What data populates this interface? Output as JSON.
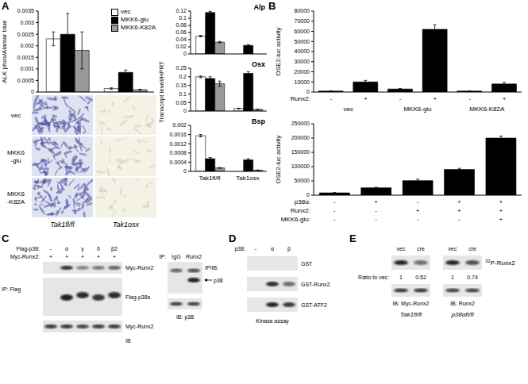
{
  "panel_labels": [
    "A",
    "B",
    "C",
    "D",
    "E"
  ],
  "chart_data": [
    {
      "type": "bar",
      "ylabel": "ALK phos/Alamar blue",
      "categories": [
        null,
        null
      ],
      "series": [
        {
          "name": "vec",
          "color": "#ffffff",
          "values": [
            0.0023,
            0.00015
          ],
          "errors": [
            0.0003,
            3e-05
          ]
        },
        {
          "name": "MKK6-glu",
          "color": "#000000",
          "values": [
            0.0025,
            0.00085
          ],
          "errors": [
            0.0009,
            0.0001
          ]
        },
        {
          "name": "MKK6-K82A",
          "color": "#999999",
          "values": [
            0.0018,
            0.0001
          ],
          "errors": [
            0.0008,
            2e-05
          ]
        }
      ],
      "ylim": [
        0,
        0.0035
      ],
      "yticks": [
        0,
        0.0005,
        0.001,
        0.0015,
        0.002,
        0.0025,
        0.003,
        0.0035
      ],
      "grid": false,
      "legend": "upper right"
    },
    {
      "type": "bar",
      "title": "Alp",
      "categories": [
        null,
        null
      ],
      "series": [
        {
          "name": "vec",
          "color": "#ffffff",
          "values": [
            0.05,
            0
          ],
          "errors": [
            0.002,
            0
          ]
        },
        {
          "name": "MKK6-glu",
          "color": "#000000",
          "values": [
            0.116,
            0.024
          ],
          "errors": [
            0.003,
            0.002
          ]
        },
        {
          "name": "MKK6-K82A",
          "color": "#999999",
          "values": [
            0.033,
            0
          ],
          "errors": [
            0.002,
            0
          ]
        }
      ],
      "ylim": [
        0,
        0.12
      ],
      "yticks": [
        0,
        0.02,
        0.04,
        0.06,
        0.08,
        0.1,
        0.12
      ],
      "grid": false
    },
    {
      "type": "bar",
      "title": "Osx",
      "ylabel": "Transcript level/HPRT",
      "categories": [
        null,
        null
      ],
      "series": [
        {
          "name": "vec",
          "color": "#ffffff",
          "values": [
            0.2,
            0.015
          ],
          "errors": [
            0.005,
            0.002
          ]
        },
        {
          "name": "MKK6-glu",
          "color": "#000000",
          "values": [
            0.19,
            0.22
          ],
          "errors": [
            0.01,
            0.01
          ]
        },
        {
          "name": "MKK6-K82A",
          "color": "#999999",
          "values": [
            0.16,
            0.01
          ],
          "errors": [
            0.015,
            0.001
          ]
        }
      ],
      "ylim": [
        0,
        0.25
      ],
      "yticks": [
        0,
        0.05,
        0.1,
        0.15,
        0.2,
        0.25
      ],
      "grid": false
    },
    {
      "type": "bar",
      "title": "Bsp",
      "categories": [
        "Tak1fl/fl",
        "Tak1osx"
      ],
      "series": [
        {
          "name": "vec",
          "color": "#ffffff",
          "values": [
            0.00155,
            0
          ],
          "errors": [
            5e-05,
            0
          ]
        },
        {
          "name": "MKK6-glu",
          "color": "#000000",
          "values": [
            0.00055,
            0.0005
          ],
          "errors": [
            5e-05,
            5e-05
          ]
        },
        {
          "name": "MKK6-K82A",
          "color": "#999999",
          "values": [
            0.00015,
            5e-05
          ],
          "errors": [
            2e-05,
            1e-05
          ]
        }
      ],
      "ylim": [
        0,
        0.002
      ],
      "yticks": [
        0,
        0.0004,
        0.0008,
        0.0012,
        0.0016,
        0.002
      ],
      "grid": false
    },
    {
      "type": "bar",
      "ylabel": "OSE2-luc activity",
      "categories": [
        "-",
        "+",
        "-",
        "+",
        "-",
        "+"
      ],
      "row_label": "Runx2:",
      "groups": [
        "vec",
        "MKK6-glu",
        "MKK6-K82A"
      ],
      "values": [
        1000,
        10000,
        3000,
        62000,
        1000,
        8000
      ],
      "errors": [
        200,
        1500,
        500,
        4500,
        200,
        1500
      ],
      "color": "#000000",
      "ylim": [
        0,
        80000
      ],
      "yticks": [
        0,
        10000,
        20000,
        30000,
        40000,
        50000,
        60000,
        70000,
        80000
      ],
      "grid": false
    },
    {
      "type": "bar",
      "ylabel": "OSE2-luc activity",
      "categories": [
        null,
        null,
        null,
        null,
        null
      ],
      "conditions": [
        {
          "label": "p38α:",
          "marks": [
            "-",
            "+",
            "-",
            "+",
            "+"
          ]
        },
        {
          "label": "Runx2:",
          "marks": [
            "-",
            "-",
            "+",
            "+",
            "+"
          ]
        },
        {
          "label": "MKK6-glu:",
          "marks": [
            "-",
            "-",
            "-",
            "-",
            "+"
          ]
        }
      ],
      "values": [
        8000,
        26000,
        51000,
        90000,
        200000
      ],
      "errors": [
        1500,
        1500,
        5000,
        4000,
        7000
      ],
      "color": "#000000",
      "ylim": [
        0,
        250000
      ],
      "yticks": [
        0,
        50000,
        100000,
        150000,
        200000,
        250000
      ],
      "grid": false
    }
  ],
  "images": {
    "rows": [
      "vec",
      "MKK6-glu",
      "MKK6-K82A"
    ],
    "columns": [
      "Tak1fl/fl",
      "Tak1osx"
    ]
  },
  "blots": {
    "C": {
      "header_rows": [
        {
          "label": "Flag-p38:",
          "lanes": [
            "-",
            "α",
            "γ",
            "δ",
            "β2"
          ]
        },
        {
          "label": "Myc-Runx2:",
          "lanes": [
            "+",
            "+",
            "+",
            "+",
            "+"
          ]
        }
      ],
      "ip_label": "IP: Flag",
      "rows": [
        "Myc-Runx2",
        "Flag-p38s",
        "Myc-Runx2"
      ],
      "ib_label": "IB",
      "side": {
        "header_label": "IP:",
        "lanes": [
          "IgG",
          "Runx2"
        ],
        "label": "IP/IB:",
        "arrow_label": "p38",
        "input_label": "IB: p38"
      }
    },
    "D": {
      "header": {
        "label": "p38:",
        "lanes": [
          "-",
          "α",
          "β"
        ]
      },
      "rows": [
        "GST",
        "GST-Runx2",
        "GST-ATF2"
      ],
      "caption": "Kinase assay"
    },
    "E": {
      "lanes": [
        "vec",
        "cre",
        "vec",
        "cre"
      ],
      "top_label": "32P-Runx2",
      "ratio_label": "Ratio to vec:",
      "ratios": [
        1,
        0.52,
        1,
        0.74
      ],
      "bottom_labels": [
        "IB: Myc-Runx2",
        "IB: Runx2"
      ],
      "groups": [
        "Tak1fl/fl",
        "p38αfl/fl"
      ]
    }
  }
}
